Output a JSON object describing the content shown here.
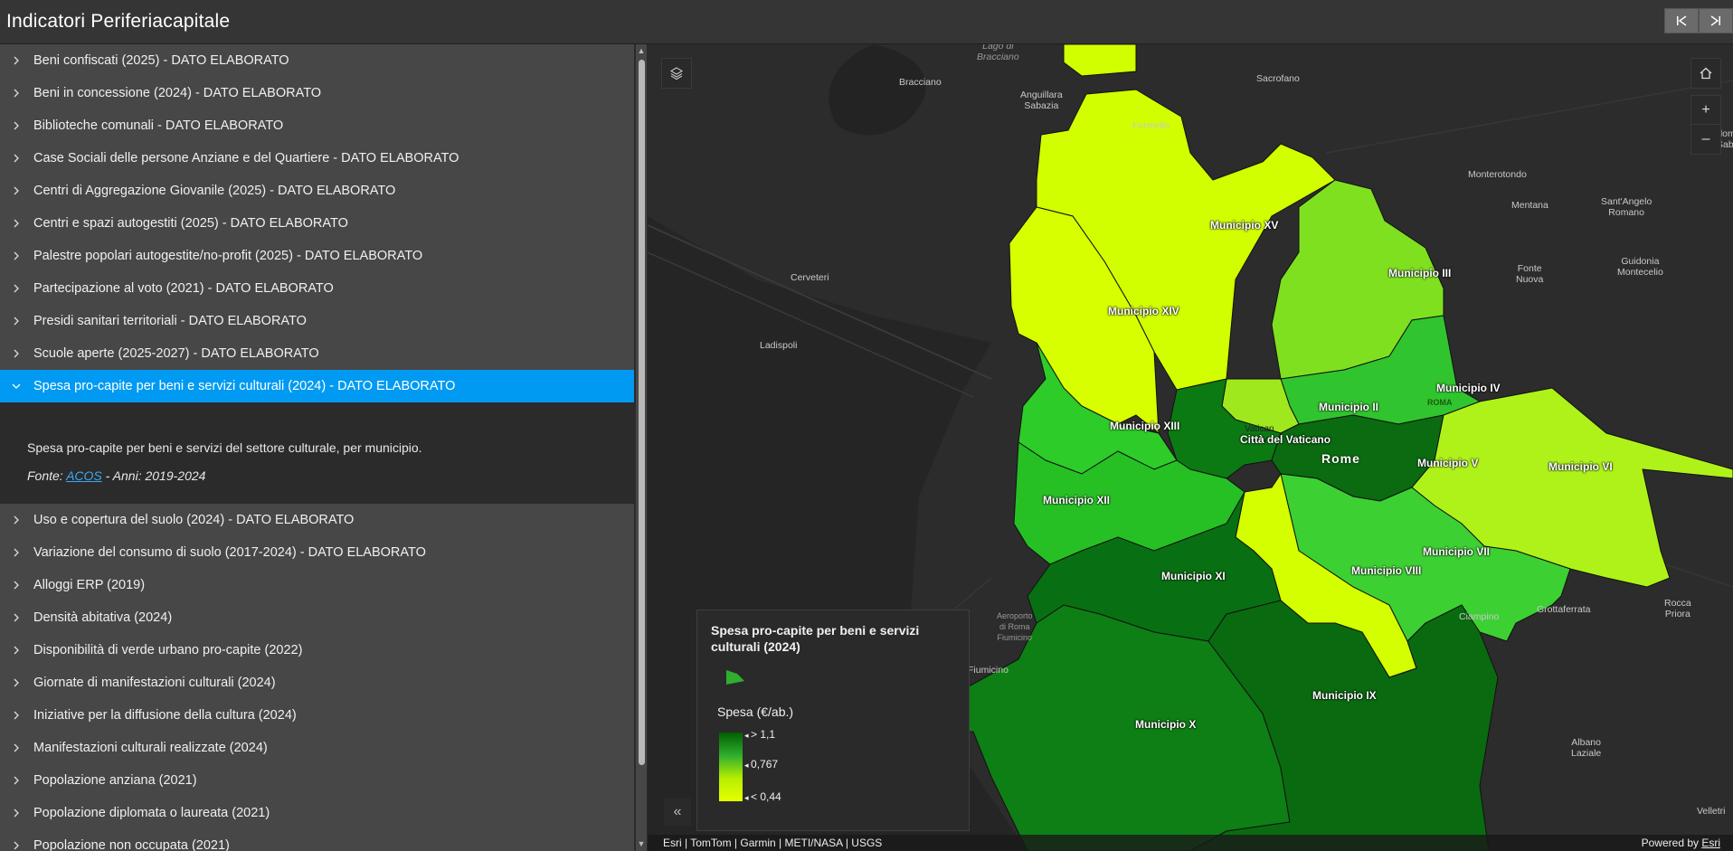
{
  "app": {
    "title": "Indicatori Periferiacapitale"
  },
  "header": {
    "prev_icon": "skip-back-icon",
    "next_icon": "skip-forward-icon"
  },
  "layers": [
    {
      "label": "Beni confiscati (2025) - DATO ELABORATO"
    },
    {
      "label": "Beni in concessione (2024) - DATO ELABORATO"
    },
    {
      "label": "Biblioteche comunali - DATO ELABORATO"
    },
    {
      "label": "Case Sociali delle persone Anziane e del Quartiere - DATO ELABORATO"
    },
    {
      "label": "Centri di Aggregazione Giovanile (2025) - DATO ELABORATO"
    },
    {
      "label": "Centri e spazi autogestiti (2025) - DATO ELABORATO"
    },
    {
      "label": "Palestre popolari autogestite/no-profit (2025) - DATO ELABORATO"
    },
    {
      "label": "Partecipazione al voto (2021) - DATO ELABORATO"
    },
    {
      "label": "Presidi sanitari territoriali - DATO ELABORATO"
    },
    {
      "label": "Scuole aperte (2025-2027) - DATO ELABORATO"
    },
    {
      "label": "Spesa pro-capite per beni e servizi culturali (2024) - DATO ELABORATO"
    },
    {
      "label": "Uso e copertura del suolo (2024) - DATO ELABORATO"
    },
    {
      "label": "Variazione del consumo di suolo (2017-2024) - DATO ELABORATO"
    },
    {
      "label": "Alloggi ERP (2019)"
    },
    {
      "label": "Densità abitativa (2024)"
    },
    {
      "label": "Disponibilità di verde urbano pro-capite (2022)"
    },
    {
      "label": "Giornate di manifestazioni culturali (2024)"
    },
    {
      "label": "Iniziative per la diffusione della cultura (2024)"
    },
    {
      "label": "Manifestazioni culturali realizzate (2024)"
    },
    {
      "label": "Popolazione anziana (2021)"
    },
    {
      "label": "Popolazione diplomata o laureata (2021)"
    },
    {
      "label": "Popolazione non occupata (2021)"
    }
  ],
  "active_layer": {
    "description": "Spesa pro-capite per beni e servizi del settore culturale, per municipio.",
    "source_prefix": "Fonte: ",
    "source_link": "ACOS",
    "source_suffix": " - Anni: 2019-2024"
  },
  "map": {
    "places": [
      {
        "name": "Lago di\nBracciano"
      },
      {
        "name": "Bracciano"
      },
      {
        "name": "Anguillara\nSabazia"
      },
      {
        "name": "Sacrofano"
      },
      {
        "name": "Formello"
      },
      {
        "name": "Monterotondo"
      },
      {
        "name": "Mentana"
      },
      {
        "name": "Sant'Angelo\nRomano"
      },
      {
        "name": "Palombara\nSabina"
      },
      {
        "name": "Guidonia\nMontecelio"
      },
      {
        "name": "Fonte\nNuova"
      },
      {
        "name": "Cerveteri"
      },
      {
        "name": "Ladispoli"
      },
      {
        "name": "Aeroporto\ndi Roma\nFiumicino"
      },
      {
        "name": "Fiumicino"
      },
      {
        "name": "Grottaferrata"
      },
      {
        "name": "Ciampino"
      },
      {
        "name": "Rocca\nPriora"
      },
      {
        "name": "Albano\nLaziale"
      },
      {
        "name": "Velletri"
      },
      {
        "name": "Vatican\nCity"
      },
      {
        "name": "ROMA"
      }
    ],
    "municipi": [
      {
        "name": "Municipio XV"
      },
      {
        "name": "Municipio III"
      },
      {
        "name": "Municipio XIV"
      },
      {
        "name": "Municipio IV"
      },
      {
        "name": "Municipio II"
      },
      {
        "name": "Municipio XIII"
      },
      {
        "name": "Città del Vaticano"
      },
      {
        "name": "Municipio V"
      },
      {
        "name": "Municipio VI"
      },
      {
        "name": "Municipio XII"
      },
      {
        "name": "Municipio VII"
      },
      {
        "name": "Municipio VIII"
      },
      {
        "name": "Municipio XI"
      },
      {
        "name": "Municipio IX"
      },
      {
        "name": "Municipio X"
      }
    ],
    "city_label": "Rome",
    "buttons": {
      "layers": "layers-icon",
      "home": "home-icon",
      "zoom_in": "+",
      "zoom_out": "–",
      "collapse": "«"
    },
    "attribution_left": "Esri | TomTom | Garmin | METI/NASA | USGS",
    "attribution_powered": "Powered by ",
    "attribution_esri": "Esri"
  },
  "legend": {
    "title": "Spesa pro-capite per beni e servizi culturali (2024)",
    "field": "Spesa (€/ab.)",
    "ticks": [
      "> 1,1",
      "0,767",
      "< 0,44"
    ],
    "colors": {
      "high": "#006000",
      "mid": "#2fae2f",
      "low": "#e6ff00"
    }
  },
  "colors": {
    "accent": "#009af2",
    "header_bg": "#353535",
    "sidebar_bg": "#474747"
  }
}
